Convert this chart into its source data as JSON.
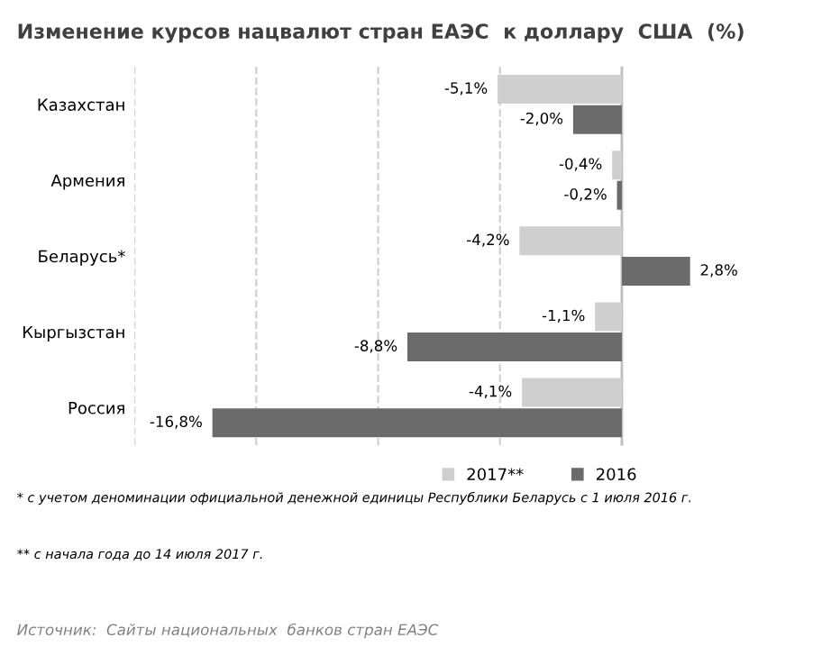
{
  "chart_data": {
    "type": "bar",
    "orientation": "horizontal",
    "title": "Изменение курсов нацвалют стран ЕАЭС  к доллару  США  (%)",
    "categories": [
      "Казахстан",
      "Армения",
      "Беларусь*",
      "Кыргызстан",
      "Россия"
    ],
    "series": [
      {
        "name": "2017**",
        "color": "#cfcfcf",
        "values": [
          -5.1,
          -0.4,
          -4.2,
          -1.1,
          -4.1
        ],
        "value_labels": [
          "-5,1%",
          "-0,4%",
          "-4,2%",
          "-1,1%",
          "-4,1%"
        ]
      },
      {
        "name": "2016",
        "color": "#6b6b6b",
        "values": [
          -2.0,
          -0.2,
          2.8,
          -8.8,
          -16.8
        ],
        "value_labels": [
          "-2,0%",
          "-0,2%",
          "2,8%",
          "-8,8%",
          "-16,8%"
        ]
      }
    ],
    "xticks": [
      {
        "value": -20,
        "label": null
      },
      {
        "value": -15,
        "label": null
      },
      {
        "value": -10,
        "label": null
      },
      {
        "value": -5,
        "label": null
      },
      {
        "value": 0,
        "label": null
      }
    ],
    "tick_labels": "y",
    "grid": "x",
    "legend": "bottom",
    "annotations": [
      "* с учетом деноминации официальной денежной единицы Республики Беларусь с 1 июля 2016 г.",
      "** с начала года до 14 июля 2017 г.",
      "Источник:  Сайты национальных  банков стран ЕАЭС"
    ]
  }
}
